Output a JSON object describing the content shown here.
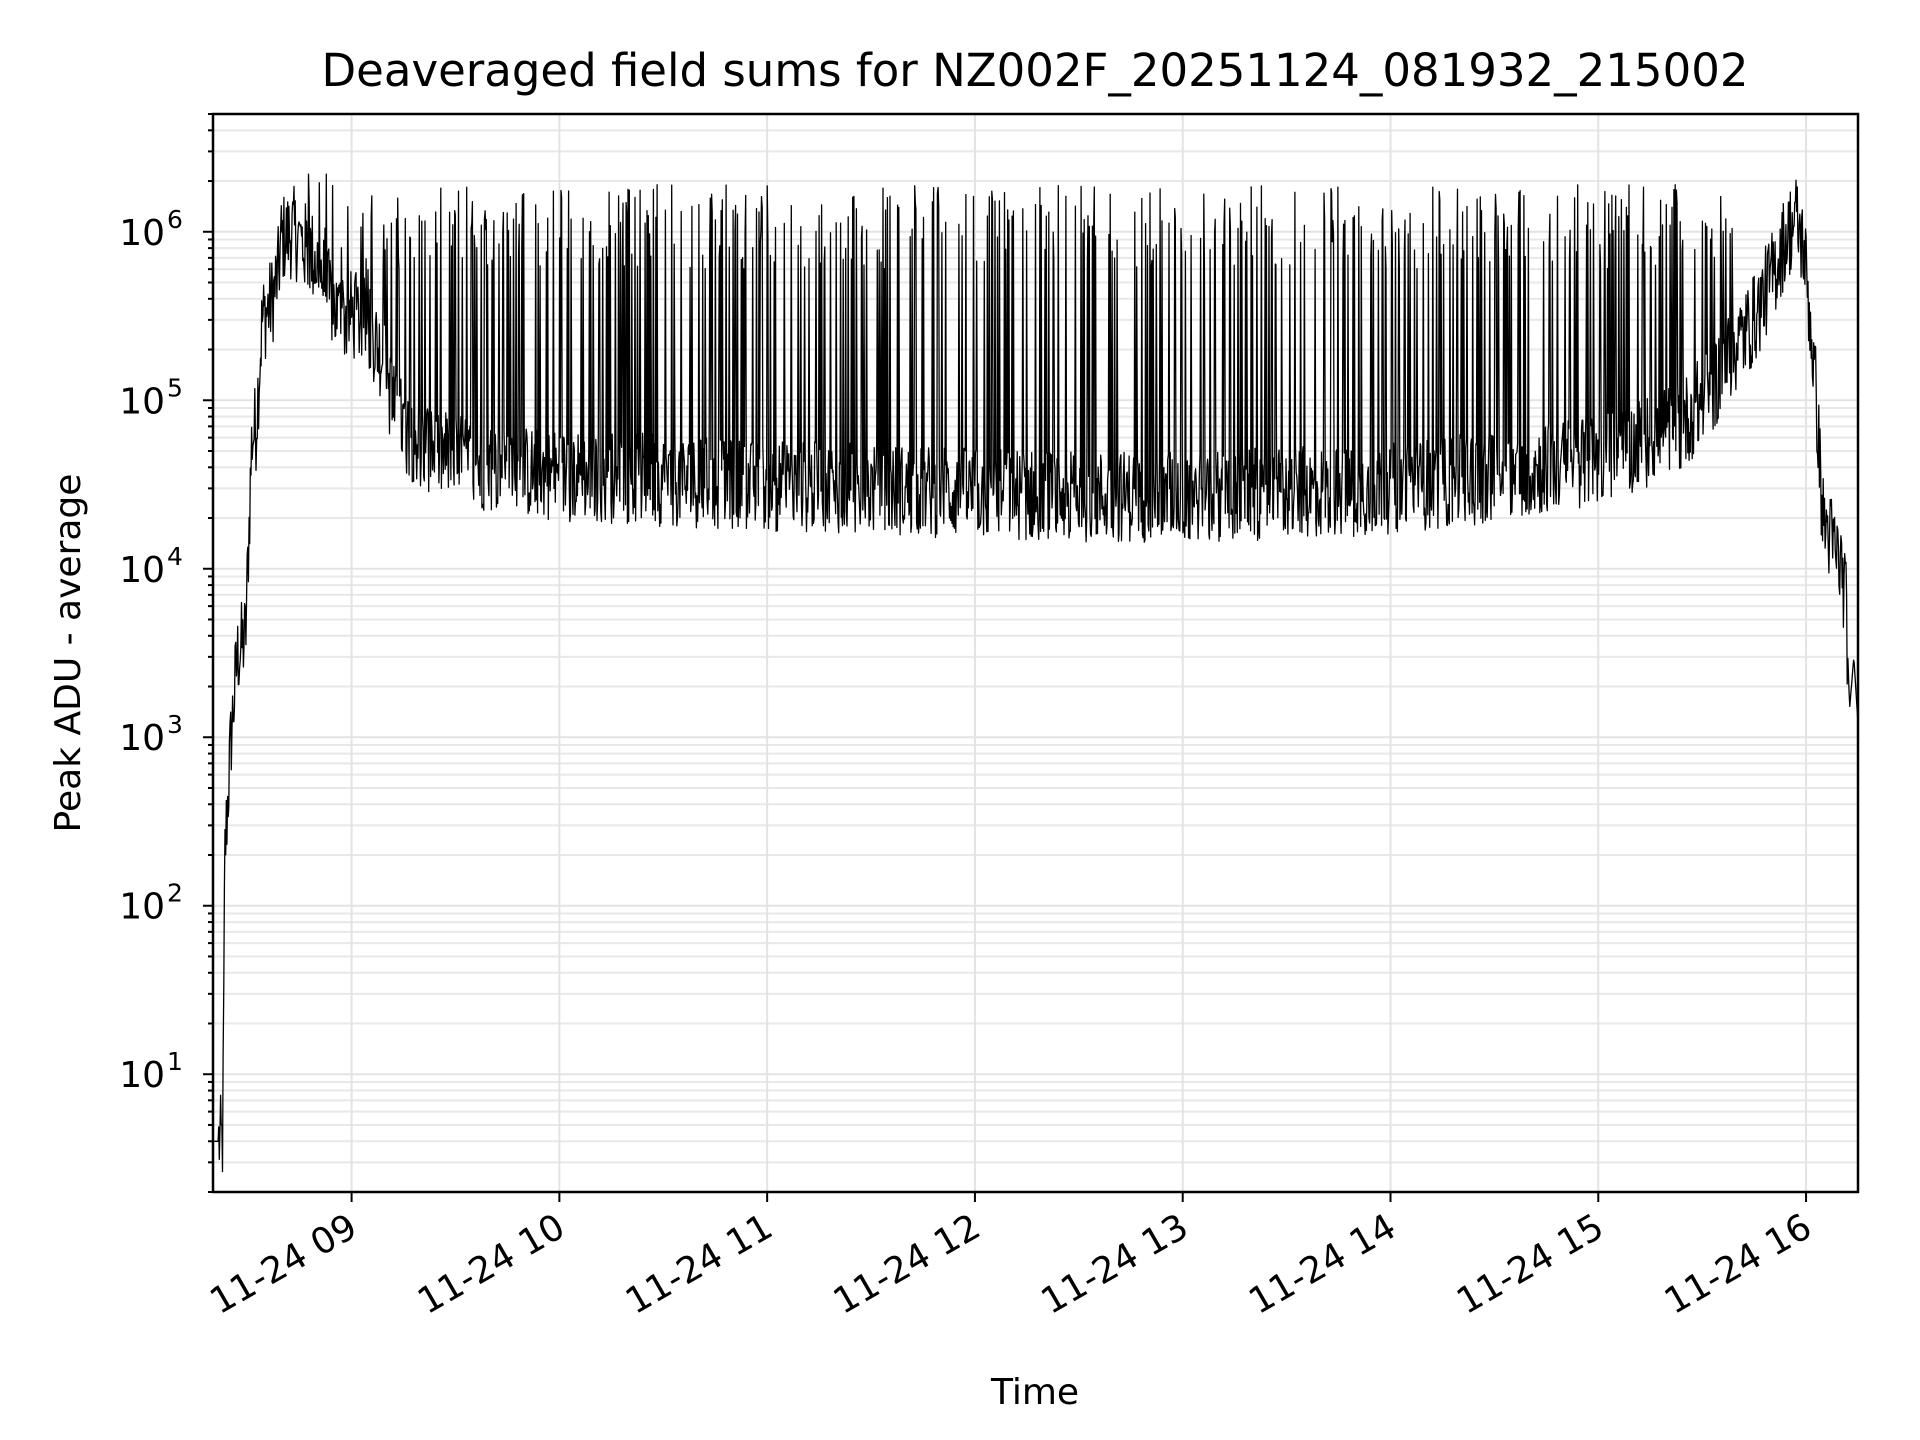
{
  "chart_data": {
    "type": "line",
    "title": "Deaveraged field sums for NZ002F_20251124_081932_215002",
    "xlabel": "Time",
    "ylabel": "Peak ADU - average",
    "yscale": "log",
    "grid": true,
    "x_unit": "hours on 11-24",
    "xlim": [
      8.333,
      16.25
    ],
    "ylim": [
      2,
      5000000
    ],
    "x_ticks": [
      {
        "value": 9,
        "label": "11-24 09"
      },
      {
        "value": 10,
        "label": "11-24 10"
      },
      {
        "value": 11,
        "label": "11-24 11"
      },
      {
        "value": 12,
        "label": "11-24 12"
      },
      {
        "value": 13,
        "label": "11-24 13"
      },
      {
        "value": 14,
        "label": "11-24 14"
      },
      {
        "value": 15,
        "label": "11-24 15"
      },
      {
        "value": 16,
        "label": "11-24 16"
      }
    ],
    "y_ticks": [
      {
        "value": 10,
        "base": "10",
        "exp": "1"
      },
      {
        "value": 100,
        "base": "10",
        "exp": "2"
      },
      {
        "value": 1000,
        "base": "10",
        "exp": "3"
      },
      {
        "value": 10000,
        "base": "10",
        "exp": "4"
      },
      {
        "value": 100000,
        "base": "10",
        "exp": "5"
      },
      {
        "value": 1000000,
        "base": "10",
        "exp": "6"
      }
    ],
    "series": [
      {
        "name": "Deaveraged field sum",
        "color": "#000000",
        "x": [
          8.333,
          8.38,
          8.39,
          8.42,
          8.45,
          8.49,
          8.5,
          8.52,
          8.54,
          8.57,
          8.6,
          8.62,
          8.65,
          8.66,
          8.72,
          8.78,
          8.82,
          8.85,
          8.88,
          8.9,
          8.92,
          8.95,
          9.0,
          9.05,
          9.1,
          9.15,
          9.2,
          9.25,
          9.3,
          9.4,
          9.5,
          9.6,
          9.7,
          9.8,
          9.9,
          10.0,
          10.2,
          10.4,
          10.6,
          10.8,
          11.0,
          11.5,
          12.0,
          12.5,
          13.0,
          13.5,
          14.0,
          14.5,
          15.0,
          15.2,
          15.4,
          15.55,
          15.65,
          15.75,
          15.85,
          15.9,
          15.95,
          15.99,
          16.02,
          16.05,
          16.08,
          16.12,
          16.15,
          16.17,
          16.19,
          16.21,
          16.23,
          16.25
        ],
        "y": [
          4,
          4,
          200,
          1000,
          3000,
          4000,
          10000,
          60000,
          70000,
          300000,
          350000,
          400000,
          600000,
          900000,
          1000000,
          800000,
          700000,
          600000,
          450000,
          400000,
          350000,
          300000,
          320000,
          300000,
          250000,
          180000,
          90000,
          70000,
          60000,
          50000,
          45000,
          42000,
          40000,
          38000,
          37000,
          36000,
          35000,
          34000,
          33000,
          32000,
          31000,
          30000,
          28000,
          27000,
          27000,
          28000,
          30000,
          35000,
          45000,
          55000,
          70000,
          120000,
          200000,
          300000,
          600000,
          900000,
          1200000,
          800000,
          300000,
          100000,
          20000,
          15000,
          12000,
          10000,
          7000,
          1500,
          3000,
          1200
        ],
        "spikes": {
          "description": "dense intermittent spikes from the baseline up to about 1e6 between 09:10 and 15:40",
          "start": 9.15,
          "end": 15.65,
          "peak_typical": 1200000,
          "peak_max": 2200000
        }
      }
    ]
  }
}
